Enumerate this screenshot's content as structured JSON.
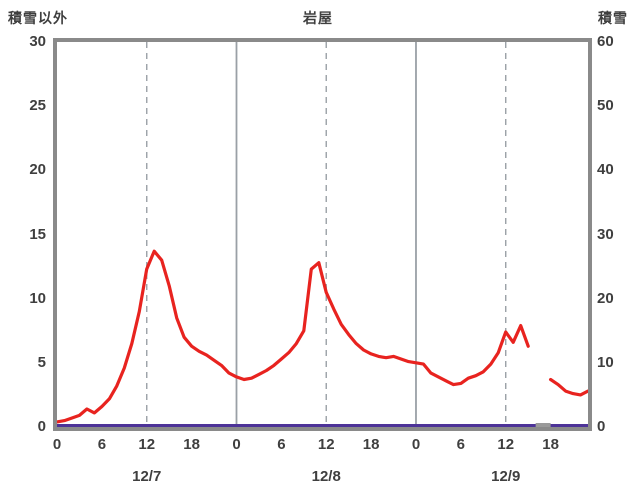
{
  "header": {
    "left_axis_title": "積雪以外",
    "station_title": "岩屋",
    "right_axis_title": "積雪"
  },
  "chart_data": {
    "type": "line",
    "title": "岩屋",
    "left_axis": {
      "label": "積雪以外",
      "ticks": [
        0,
        5,
        10,
        15,
        20,
        25,
        30
      ],
      "range": [
        0,
        30
      ]
    },
    "right_axis": {
      "label": "積雪",
      "ticks": [
        0,
        10,
        20,
        30,
        40,
        50,
        60
      ],
      "range": [
        0,
        60
      ]
    },
    "x_axis": {
      "unit": "hour",
      "hours_total": 72,
      "tick_labels_per_day": [
        0,
        6,
        12,
        18
      ],
      "day_labels": [
        "12/7",
        "12/8",
        "12/9"
      ]
    },
    "gridlines": {
      "solid_hours": [
        24,
        48
      ],
      "dashed_hours": [
        12,
        36,
        60
      ]
    },
    "series": [
      {
        "name": "積雪",
        "axis": "right",
        "color": "#4d3398",
        "width": 3,
        "lift": 1.5,
        "const_value": 0,
        "from": 0,
        "to": 71
      },
      {
        "name": "欠測",
        "axis": "right",
        "color": "#9a9a9a",
        "width": 4,
        "lift": 2,
        "const_value": 0,
        "from": 64,
        "to": 66
      },
      {
        "name": "積雪以外",
        "axis": "left",
        "color": "#e8231f",
        "width": 3.2,
        "values": [
          0.4,
          0.5,
          0.7,
          0.9,
          1.4,
          1.1,
          1.6,
          2.2,
          3.2,
          4.6,
          6.5,
          9.0,
          12.3,
          13.7,
          13.0,
          11.0,
          8.5,
          7.0,
          6.3,
          5.9,
          5.6,
          5.2,
          4.8,
          4.2,
          3.9,
          3.7,
          3.8,
          4.1,
          4.4,
          4.8,
          5.3,
          5.8,
          6.5,
          7.5,
          12.3,
          12.8,
          10.5,
          9.2,
          8.0,
          7.2,
          6.5,
          6.0,
          5.7,
          5.5,
          5.4,
          5.5,
          5.3,
          5.1,
          5.0,
          4.9,
          4.2,
          3.9,
          3.6,
          3.3,
          3.4,
          3.8,
          4.0,
          4.3,
          4.9,
          5.8,
          7.4,
          6.6,
          7.9,
          6.3,
          null,
          null,
          3.7,
          3.3,
          2.8,
          2.6,
          2.5,
          2.8
        ]
      }
    ],
    "legend": "none",
    "grid": "vertical-only"
  },
  "colors": {
    "frame": "#8a8a8a",
    "grid": "#9aa0a6",
    "text": "#3f3f3f",
    "background": "#ffffff"
  }
}
